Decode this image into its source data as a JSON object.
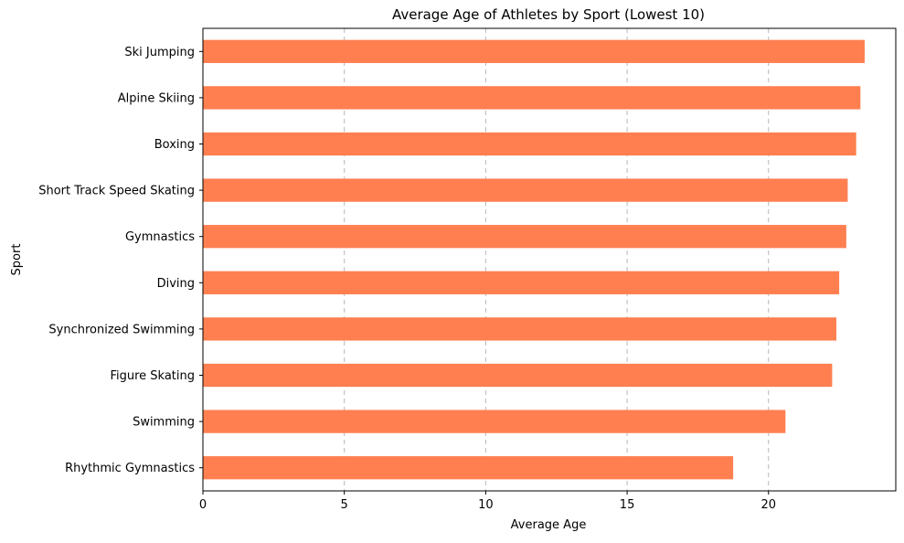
{
  "chart_data": {
    "type": "bar",
    "orientation": "horizontal",
    "title": "Average Age of Athletes by Sport (Lowest 10)",
    "xlabel": "Average Age",
    "ylabel": "Sport",
    "categories": [
      "Ski Jumping",
      "Alpine Skiing",
      "Boxing",
      "Short Track Speed Skating",
      "Gymnastics",
      "Diving",
      "Synchronized Swimming",
      "Figure Skating",
      "Swimming",
      "Rhythmic Gymnastics"
    ],
    "values": [
      23.4,
      23.25,
      23.1,
      22.8,
      22.75,
      22.5,
      22.4,
      22.25,
      20.6,
      18.75
    ],
    "xlim": [
      0,
      24.5
    ],
    "xticks": [
      0,
      5,
      10,
      15,
      20
    ],
    "xtick_labels": [
      "0",
      "5",
      "10",
      "15",
      "20"
    ],
    "grid": "x-dashed",
    "bar_color": "#ff7f50"
  }
}
